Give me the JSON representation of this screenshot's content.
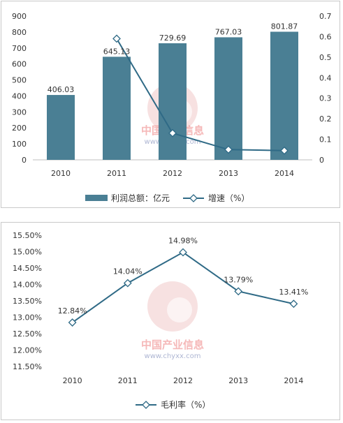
{
  "watermark": {
    "name": "中国产业信息",
    "url": "www.chyxx.com"
  },
  "colors": {
    "bar": "#4a7f94",
    "line": "#2f6a86",
    "grid": "#d9d9d9",
    "axis": "#bfbfbf"
  },
  "chart_data": [
    {
      "type": "bar+line",
      "categories": [
        "2010",
        "2011",
        "2012",
        "2013",
        "2014"
      ],
      "series": [
        {
          "name": "利润总额：亿元",
          "type": "bar",
          "axis": "left",
          "values": [
            406.03,
            645.13,
            729.69,
            767.03,
            801.87
          ],
          "labels": [
            "406.03",
            "645.13",
            "729.69",
            "767.03",
            "801.87"
          ]
        },
        {
          "name": "增速（%）",
          "type": "line",
          "axis": "right",
          "values": [
            null,
            0.59,
            0.13,
            0.05,
            0.045
          ]
        }
      ],
      "y_left": {
        "ylim": [
          0,
          900
        ],
        "ticks": [
          "0",
          "100",
          "200",
          "300",
          "400",
          "500",
          "600",
          "700",
          "800",
          "900"
        ]
      },
      "y_right": {
        "ylim": [
          0,
          0.7
        ],
        "ticks": [
          "0",
          "0.1",
          "0.2",
          "0.3",
          "0.4",
          "0.5",
          "0.6",
          "0.7"
        ]
      },
      "legend": "bottom",
      "grid": false
    },
    {
      "type": "line",
      "categories": [
        "2010",
        "2011",
        "2012",
        "2013",
        "2014"
      ],
      "series": [
        {
          "name": "毛利率（%）",
          "values": [
            12.84,
            14.04,
            14.98,
            13.79,
            13.41
          ],
          "labels": [
            "12.84%",
            "14.04%",
            "14.98%",
            "13.79%",
            "13.41%"
          ]
        }
      ],
      "y": {
        "ylim": [
          11.5,
          15.5
        ],
        "ticks": [
          "11.50%",
          "12.00%",
          "12.50%",
          "13.00%",
          "13.50%",
          "14.00%",
          "14.50%",
          "15.00%",
          "15.50%"
        ]
      },
      "legend": "bottom",
      "grid": false
    }
  ]
}
